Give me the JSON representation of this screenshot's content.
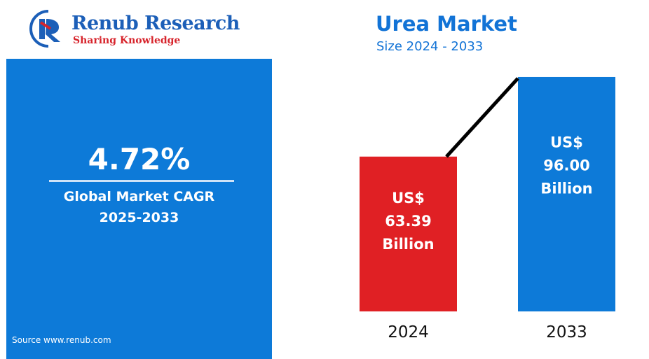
{
  "brand": {
    "name": "Renub Research",
    "tagline": "Sharing Knowledge",
    "logo_icon": "rr-monogram-icon",
    "primary_color": "#1c5fb8",
    "accent_color": "#d7242c"
  },
  "summary": {
    "cagr_value": "4.72%",
    "cagr_label_line1": "Global Market CAGR",
    "cagr_label_line2": "2025-2033",
    "source": "Source  www.renub.com",
    "panel_color": "#0d7ad8"
  },
  "chart_data": {
    "type": "bar",
    "title": "Urea Market",
    "subtitle": "Size 2024 - 2033",
    "categories": [
      "2024",
      "2033"
    ],
    "values": [
      63.39,
      96.0
    ],
    "unit": "US$ Billion",
    "data_labels": [
      [
        "US$",
        "63.39",
        "Billion"
      ],
      [
        "US$",
        "96.00",
        "Billion"
      ]
    ],
    "colors": [
      "#e02024",
      "#0d7ad8"
    ],
    "trend_line": true,
    "ylim": [
      0,
      100
    ],
    "grid": false,
    "legend": "none"
  }
}
